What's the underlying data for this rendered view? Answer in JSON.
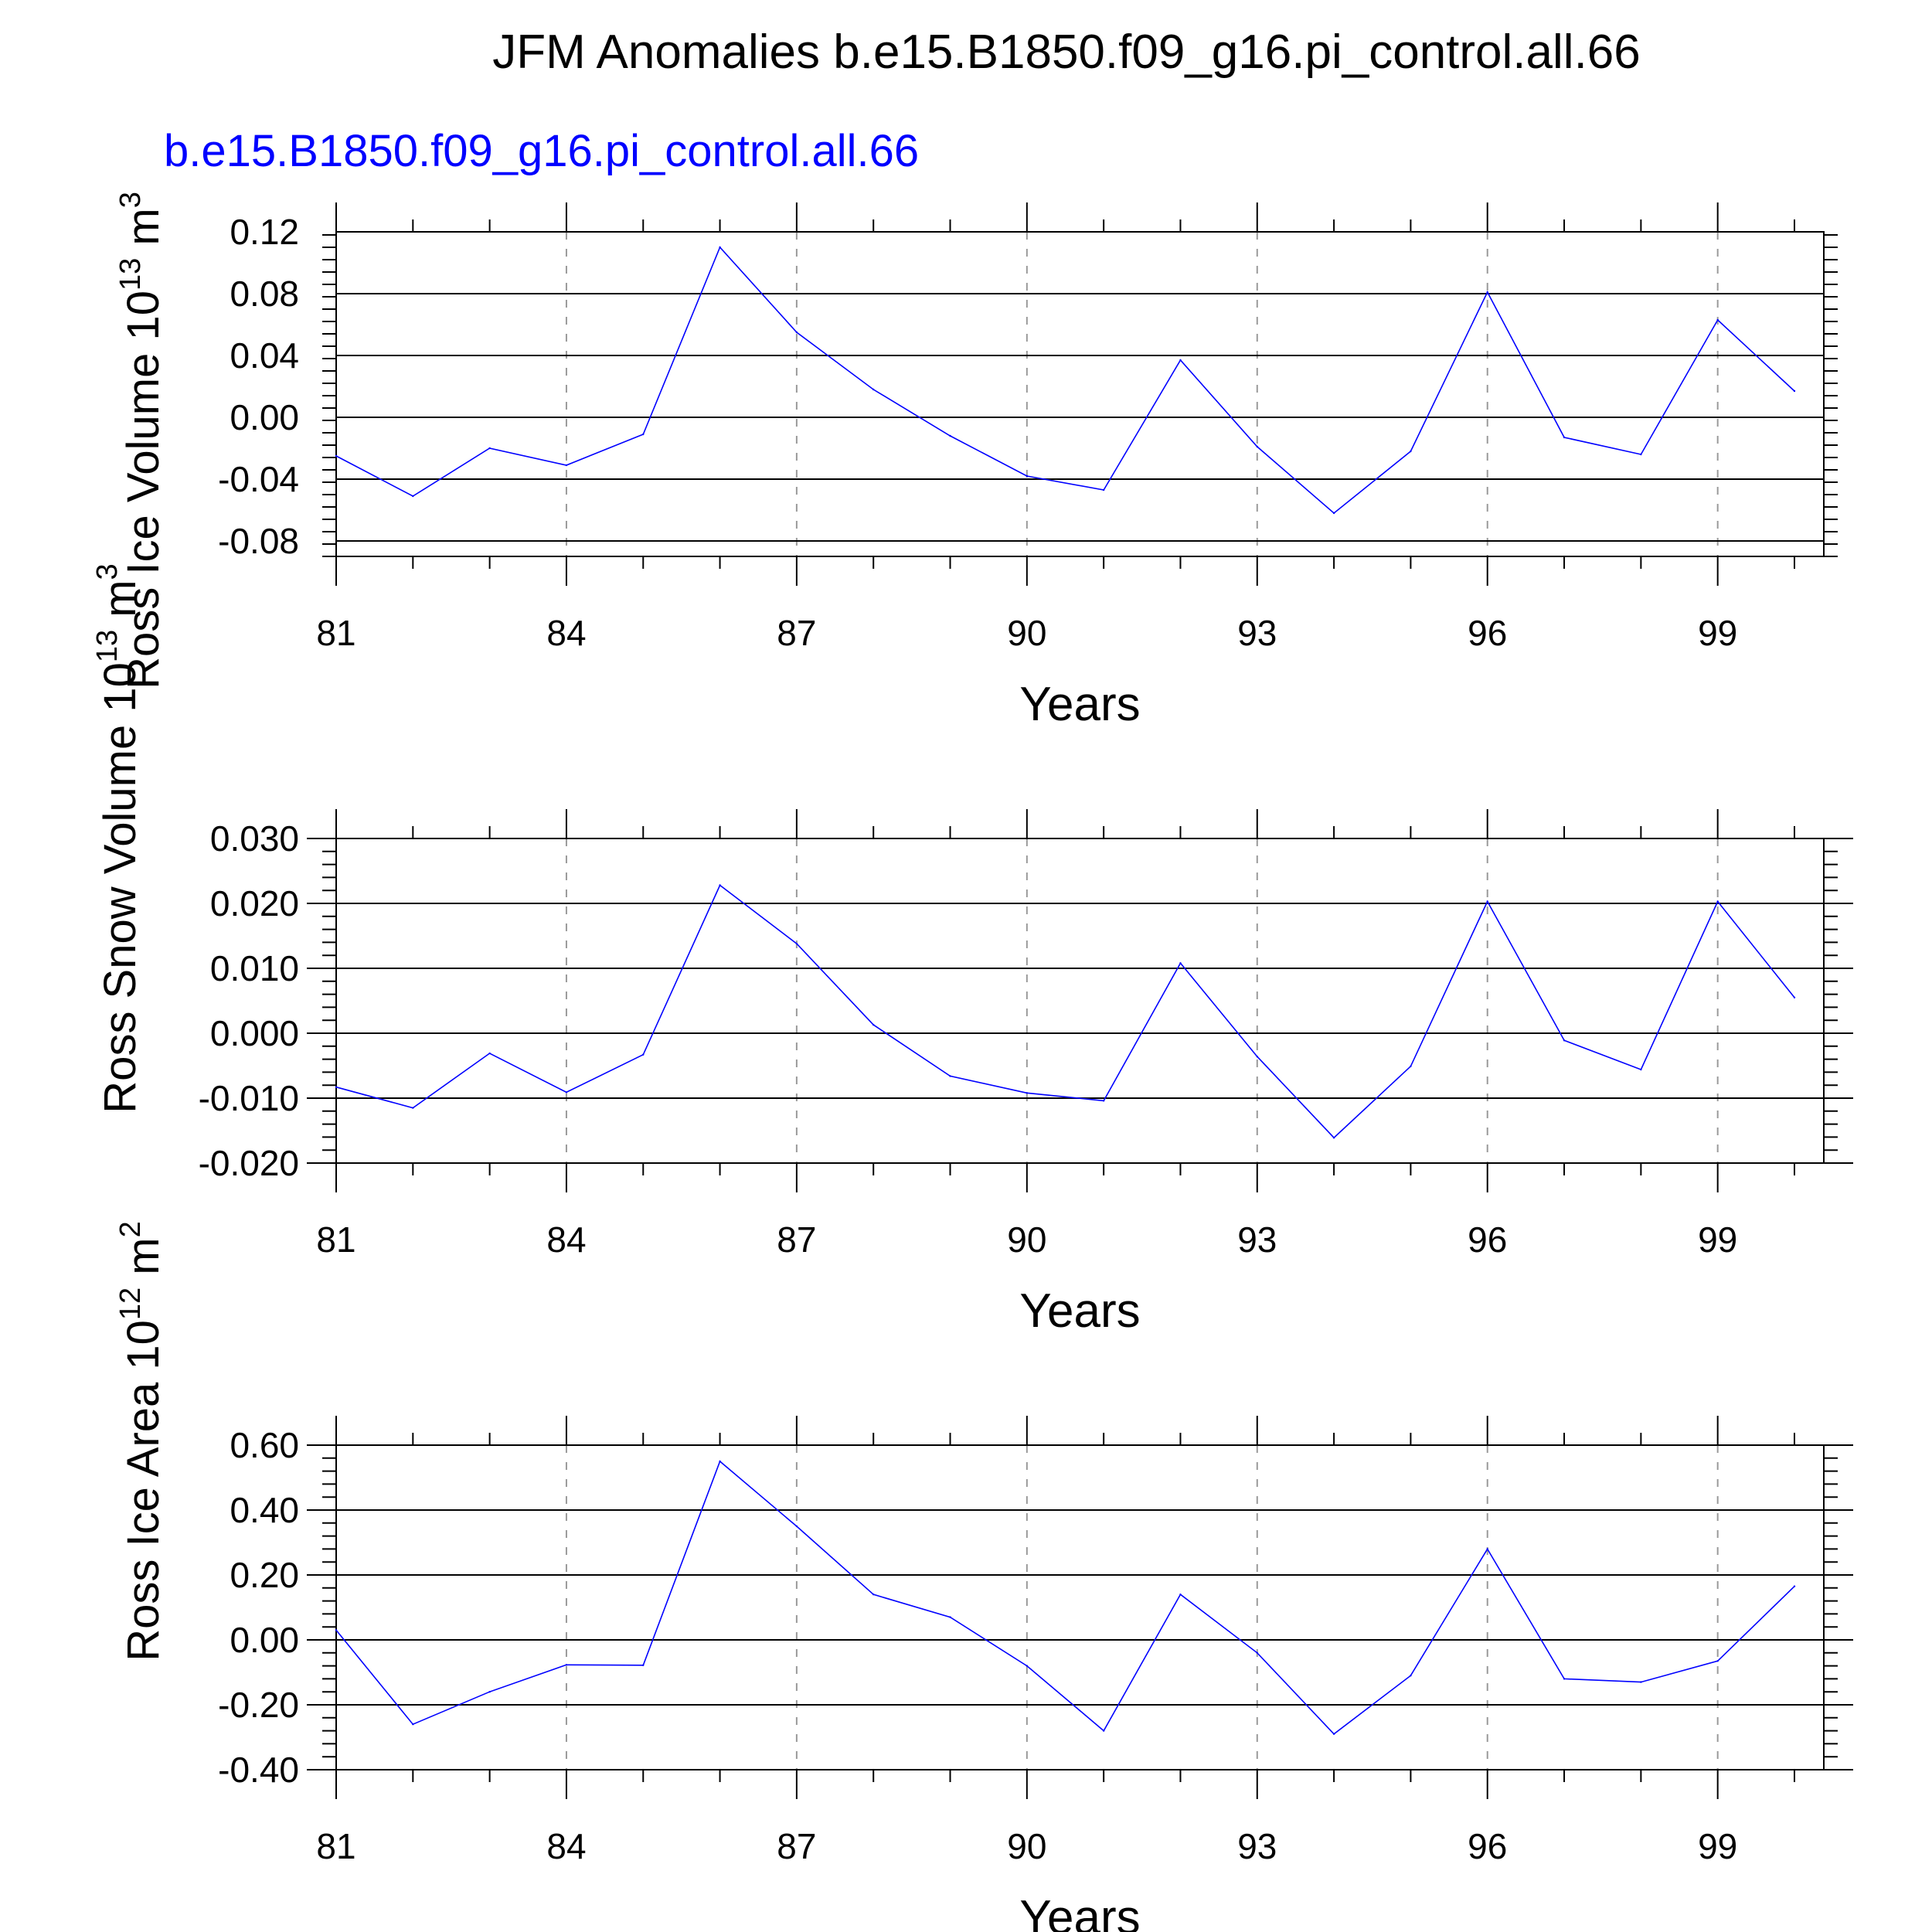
{
  "title": "JFM Anomalies b.e15.B1850.f09_g16.pi_control.all.66",
  "subtitle": "b.e15.B1850.f09_g16.pi_control.all.66",
  "colors": {
    "series": "#0000ff",
    "grid": "#9a9a9a",
    "frame": "#000000"
  },
  "chart_data": [
    {
      "type": "line",
      "ylabel": {
        "text": "Ross Ice Volume 10",
        "exp": "13",
        "unit": " m",
        "unit_exp": "3"
      },
      "xlabel": "Years",
      "x": [
        81,
        82,
        83,
        84,
        85,
        86,
        87,
        88,
        89,
        90,
        91,
        92,
        93,
        94,
        95,
        96,
        97,
        98,
        99,
        100
      ],
      "xlim": [
        81,
        100
      ],
      "xticks": [
        81,
        84,
        87,
        90,
        93,
        96,
        99
      ],
      "xticklabels": [
        "81",
        "84",
        "87",
        "90",
        "93",
        "96",
        "99"
      ],
      "ylim": [
        -0.09,
        0.12
      ],
      "yticks": [
        0.12,
        0.08,
        0.04,
        0.0,
        -0.04,
        -0.08
      ],
      "yticklabels": [
        "0.12",
        "0.08",
        "0.04",
        "0.00",
        "-0.04",
        "-0.08"
      ],
      "series": [
        {
          "values": [
            -0.025,
            -0.051,
            -0.02,
            -0.031,
            -0.011,
            0.11,
            0.055,
            0.018,
            -0.012,
            -0.038,
            -0.047,
            0.037,
            -0.019,
            -0.062,
            -0.022,
            0.081,
            -0.013,
            -0.024,
            0.063,
            0.017
          ]
        }
      ]
    },
    {
      "type": "line",
      "ylabel": {
        "text": "Ross Snow Volume 10",
        "exp": "13",
        "unit": " m",
        "unit_exp": "3"
      },
      "xlabel": "Years",
      "x": [
        81,
        82,
        83,
        84,
        85,
        86,
        87,
        88,
        89,
        90,
        91,
        92,
        93,
        94,
        95,
        96,
        97,
        98,
        99,
        100
      ],
      "xlim": [
        81,
        100
      ],
      "xticks": [
        81,
        84,
        87,
        90,
        93,
        96,
        99
      ],
      "xticklabels": [
        "81",
        "84",
        "87",
        "90",
        "93",
        "96",
        "99"
      ],
      "ylim": [
        -0.02,
        0.03
      ],
      "yticks": [
        0.03,
        0.02,
        0.01,
        0.0,
        -0.01,
        -0.02
      ],
      "yticklabels": [
        "0.030",
        "0.020",
        "0.010",
        "0.000",
        "-0.010",
        "-0.020"
      ],
      "series": [
        {
          "values": [
            -0.0083,
            -0.0115,
            -0.0031,
            -0.0091,
            -0.0033,
            0.0228,
            0.0138,
            0.0013,
            -0.0066,
            -0.0092,
            -0.0104,
            0.0108,
            -0.0036,
            -0.0161,
            -0.0051,
            0.0203,
            -0.0011,
            -0.0056,
            0.0203,
            0.0055
          ]
        }
      ]
    },
    {
      "type": "line",
      "ylabel": {
        "text": "Ross Ice Area 10",
        "exp": "12",
        "unit": " m",
        "unit_exp": "2"
      },
      "xlabel": "Years",
      "x": [
        81,
        82,
        83,
        84,
        85,
        86,
        87,
        88,
        89,
        90,
        91,
        92,
        93,
        94,
        95,
        96,
        97,
        98,
        99,
        100
      ],
      "xlim": [
        81,
        100
      ],
      "xticks": [
        81,
        84,
        87,
        90,
        93,
        96,
        99
      ],
      "xticklabels": [
        "81",
        "84",
        "87",
        "90",
        "93",
        "96",
        "99"
      ],
      "ylim": [
        -0.4,
        0.6
      ],
      "yticks": [
        0.6,
        0.4,
        0.2,
        0.0,
        -0.2,
        -0.4
      ],
      "yticklabels": [
        "0.60",
        "0.40",
        "0.20",
        "0.00",
        "-0.20",
        "-0.40"
      ],
      "series": [
        {
          "values": [
            0.03,
            -0.26,
            -0.16,
            -0.077,
            -0.078,
            0.55,
            0.35,
            0.14,
            0.07,
            -0.08,
            -0.28,
            0.14,
            -0.04,
            -0.29,
            -0.11,
            0.28,
            -0.12,
            -0.13,
            -0.065,
            0.165
          ]
        }
      ]
    }
  ]
}
